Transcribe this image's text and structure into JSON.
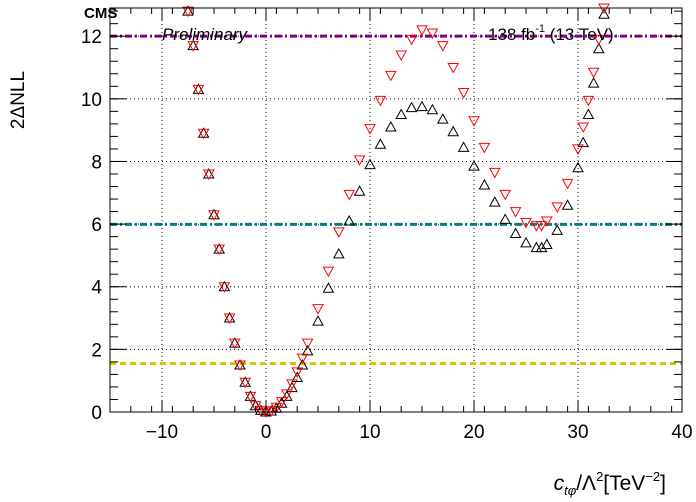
{
  "header": {
    "experiment": "CMS",
    "status": "Preliminary",
    "lumi_value": "138 fb",
    "lumi_exp": "-1",
    "lumi_energy": " (13 TeV)"
  },
  "axes": {
    "y_label": "2ΔNLL",
    "x_label_c": "c",
    "x_label_sub": "tφ",
    "x_label_mid": "/Λ",
    "x_label_sq": "2",
    "x_label_unit": "[TeV",
    "x_label_unit_exp": "−2",
    "x_label_close": "]"
  },
  "chart_data": {
    "type": "scatter",
    "xlim": [
      -15,
      40
    ],
    "ylim": [
      0,
      12.9
    ],
    "x_ticks": [
      -10,
      0,
      10,
      20,
      30,
      40
    ],
    "x_tick_labels": [
      "−10",
      "0",
      "10",
      "20",
      "30",
      "40"
    ],
    "y_ticks": [
      0,
      2,
      4,
      6,
      8,
      10,
      12
    ],
    "y_tick_labels": [
      "0",
      "2",
      "4",
      "6",
      "8",
      "10",
      "12"
    ],
    "grid": true,
    "x_grid": [
      -10,
      0,
      10,
      20,
      30
    ],
    "y_grid": [
      2,
      4,
      6,
      8,
      10,
      12
    ],
    "series": [
      {
        "marker": "triangle-up",
        "color": "#000000",
        "points": [
          [
            -7.5,
            12.8
          ],
          [
            -7,
            11.7
          ],
          [
            -6.5,
            10.3
          ],
          [
            -6,
            8.9
          ],
          [
            -5.5,
            7.6
          ],
          [
            -5,
            6.3
          ],
          [
            -4.5,
            5.2
          ],
          [
            -4,
            4.0
          ],
          [
            -3.5,
            3.0
          ],
          [
            -3,
            2.2
          ],
          [
            -2.5,
            1.5
          ],
          [
            -2,
            0.95
          ],
          [
            -1.5,
            0.5
          ],
          [
            -1,
            0.2
          ],
          [
            -0.5,
            0.05
          ],
          [
            0,
            0.0
          ],
          [
            0.5,
            0.03
          ],
          [
            1,
            0.12
          ],
          [
            1.5,
            0.28
          ],
          [
            2,
            0.5
          ],
          [
            2.5,
            0.78
          ],
          [
            3,
            1.1
          ],
          [
            3.5,
            1.5
          ],
          [
            4,
            1.95
          ],
          [
            5,
            2.9
          ],
          [
            6,
            3.95
          ],
          [
            7,
            5.05
          ],
          [
            8,
            6.1
          ],
          [
            9,
            7.05
          ],
          [
            10,
            7.9
          ],
          [
            11,
            8.55
          ],
          [
            12,
            9.1
          ],
          [
            13,
            9.5
          ],
          [
            14,
            9.72
          ],
          [
            15,
            9.75
          ],
          [
            16,
            9.65
          ],
          [
            17,
            9.35
          ],
          [
            18,
            8.95
          ],
          [
            19,
            8.45
          ],
          [
            20,
            7.85
          ],
          [
            21,
            7.25
          ],
          [
            22,
            6.7
          ],
          [
            23,
            6.15
          ],
          [
            24,
            5.7
          ],
          [
            25,
            5.4
          ],
          [
            26,
            5.25
          ],
          [
            26.5,
            5.25
          ],
          [
            27,
            5.35
          ],
          [
            28,
            5.8
          ],
          [
            29,
            6.6
          ],
          [
            30,
            7.8
          ],
          [
            30.5,
            8.6
          ],
          [
            31,
            9.5
          ],
          [
            31.5,
            10.5
          ],
          [
            32,
            11.6
          ],
          [
            32.5,
            12.7
          ]
        ]
      },
      {
        "marker": "triangle-down",
        "color": "#ff0000",
        "points": [
          [
            -7.5,
            12.8
          ],
          [
            -7,
            11.7
          ],
          [
            -6.5,
            10.3
          ],
          [
            -6,
            8.9
          ],
          [
            -5.5,
            7.6
          ],
          [
            -5,
            6.3
          ],
          [
            -4.5,
            5.2
          ],
          [
            -4,
            4.0
          ],
          [
            -3.5,
            3.0
          ],
          [
            -3,
            2.2
          ],
          [
            -2.5,
            1.5
          ],
          [
            -2,
            0.95
          ],
          [
            -1.5,
            0.5
          ],
          [
            -1,
            0.2
          ],
          [
            -0.5,
            0.05
          ],
          [
            0,
            0.0
          ],
          [
            0.5,
            0.04
          ],
          [
            1,
            0.15
          ],
          [
            1.5,
            0.33
          ],
          [
            2,
            0.58
          ],
          [
            2.5,
            0.9
          ],
          [
            3,
            1.28
          ],
          [
            3.5,
            1.72
          ],
          [
            4,
            2.2
          ],
          [
            5,
            3.3
          ],
          [
            6,
            4.5
          ],
          [
            7,
            5.75
          ],
          [
            8,
            6.95
          ],
          [
            9,
            8.05
          ],
          [
            10,
            9.05
          ],
          [
            11,
            9.95
          ],
          [
            12,
            10.75
          ],
          [
            13,
            11.4
          ],
          [
            14,
            11.9
          ],
          [
            15,
            12.2
          ],
          [
            16,
            12.1
          ],
          [
            17,
            11.7
          ],
          [
            18,
            11.0
          ],
          [
            19,
            10.2
          ],
          [
            20,
            9.3
          ],
          [
            21,
            8.45
          ],
          [
            22,
            7.65
          ],
          [
            23,
            6.95
          ],
          [
            24,
            6.4
          ],
          [
            25,
            6.05
          ],
          [
            26,
            5.95
          ],
          [
            26.5,
            5.95
          ],
          [
            27,
            6.1
          ],
          [
            28,
            6.55
          ],
          [
            29,
            7.3
          ],
          [
            30,
            8.4
          ],
          [
            30.5,
            9.1
          ],
          [
            31,
            9.95
          ],
          [
            31.5,
            10.85
          ],
          [
            32,
            11.9
          ],
          [
            32.5,
            12.9
          ]
        ]
      }
    ],
    "hlines": [
      {
        "y": 12.0,
        "color": "#800080",
        "style": "dash-dot"
      },
      {
        "y": 5.99,
        "color": "#008080",
        "style": "dash-dot"
      },
      {
        "y": 1.55,
        "color": "#cccc00",
        "style": "dashed"
      }
    ]
  }
}
